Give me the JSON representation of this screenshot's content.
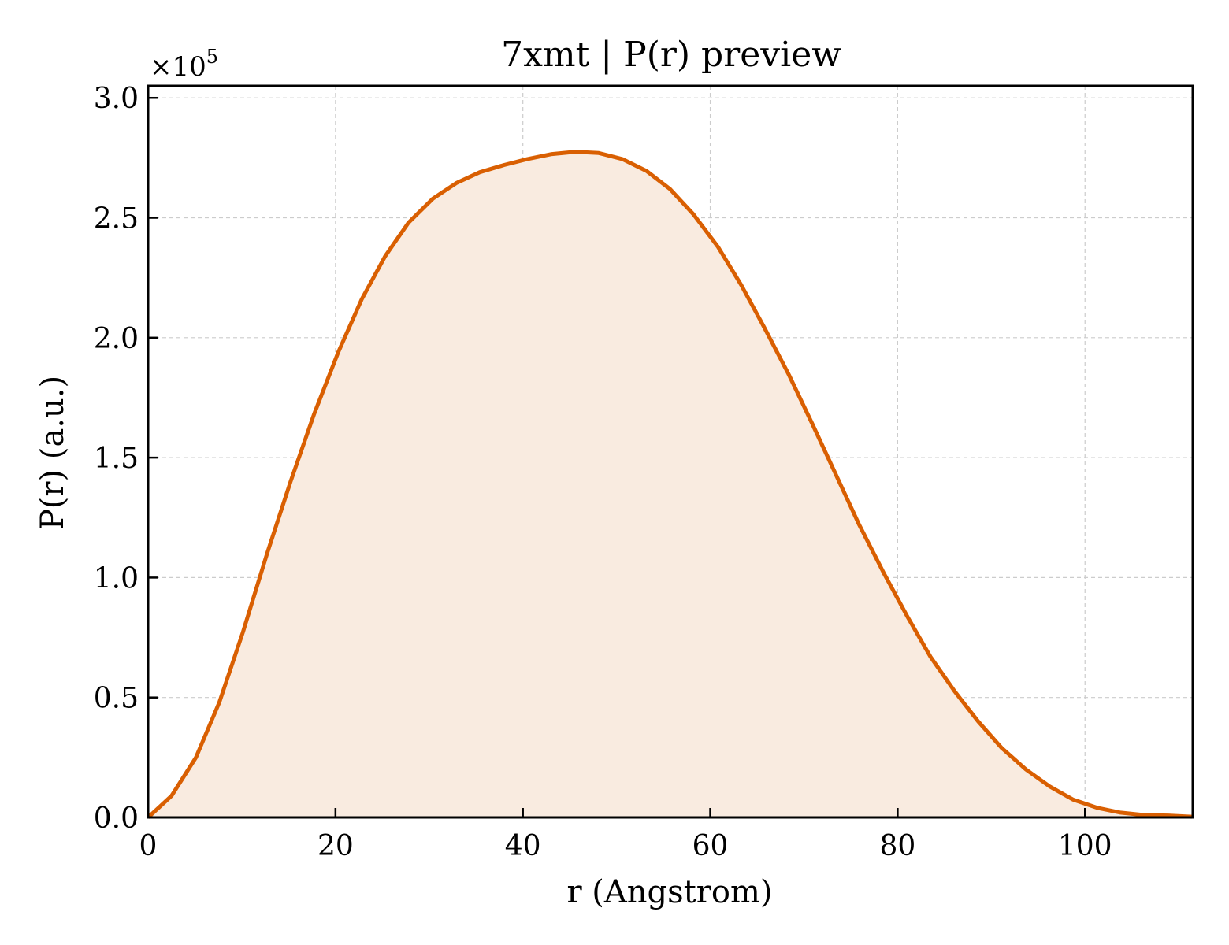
{
  "chart_data": {
    "type": "area",
    "title": "7xmt | P(r) preview",
    "xlabel": "r (Angstrom)",
    "ylabel": "P(r) (a.u.)",
    "y_multiplier": {
      "base": "×10",
      "exponent": "5"
    },
    "xlim": [
      0,
      111.5
    ],
    "ylim": [
      0,
      3.05
    ],
    "y_scale_factor": 100000,
    "x_ticks": [
      0,
      20,
      40,
      60,
      80,
      100
    ],
    "x_tick_labels": [
      "0",
      "20",
      "40",
      "60",
      "80",
      "100"
    ],
    "y_ticks": [
      0,
      0.5,
      1.0,
      1.5,
      2.0,
      2.5,
      3.0
    ],
    "y_tick_labels": [
      "0.0",
      "0.5",
      "1.0",
      "1.5",
      "2.0",
      "2.5",
      "3.0"
    ],
    "grid": true,
    "line_color": "#d95f02",
    "fill_color": "#f9ebe0",
    "series": [
      {
        "x": [
          0,
          2.5,
          5.1,
          7.6,
          10.1,
          12.7,
          15.2,
          17.7,
          20.3,
          22.8,
          25.3,
          27.8,
          30.4,
          32.9,
          35.4,
          38.0,
          40.5,
          43.0,
          45.6,
          48.1,
          50.6,
          53.2,
          55.7,
          58.2,
          60.8,
          63.3,
          65.8,
          68.4,
          70.9,
          73.4,
          75.9,
          78.5,
          81.0,
          83.5,
          86.1,
          88.6,
          91.1,
          93.7,
          96.2,
          98.7,
          101.3,
          103.8,
          106.3,
          108.9,
          111.4
        ],
        "y": [
          0.0,
          0.09,
          0.25,
          0.48,
          0.77,
          1.1,
          1.4,
          1.68,
          1.94,
          2.16,
          2.34,
          2.48,
          2.58,
          2.645,
          2.69,
          2.72,
          2.745,
          2.765,
          2.775,
          2.77,
          2.745,
          2.695,
          2.62,
          2.515,
          2.38,
          2.22,
          2.04,
          1.845,
          1.64,
          1.43,
          1.22,
          1.02,
          0.84,
          0.67,
          0.525,
          0.4,
          0.29,
          0.2,
          0.13,
          0.075,
          0.04,
          0.02,
          0.01,
          0.008,
          0.003
        ]
      }
    ]
  }
}
